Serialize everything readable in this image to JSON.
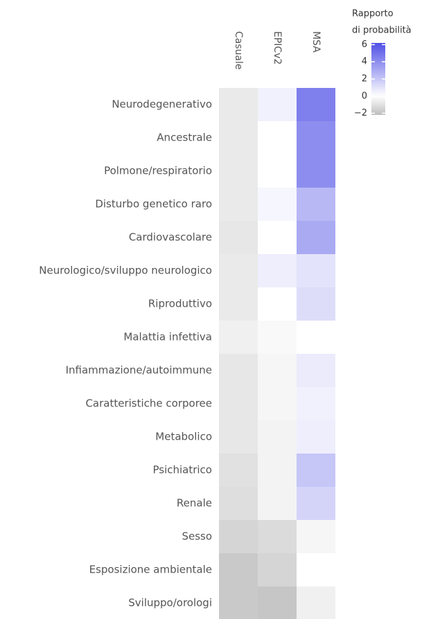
{
  "chart_data": {
    "type": "heatmap",
    "x_categories": [
      "Casuale",
      "EPICv2",
      "MSA"
    ],
    "y_categories": [
      "Neurodegenerativo",
      "Ancestrale",
      "Polmone/respiratorio",
      "Disturbo genetico raro",
      "Cardiovascolare",
      "Neurologico/sviluppo neurologico",
      "Riproduttivo",
      "Malattia infettiva",
      "Infiammazione/autoimmune",
      "Caratteristiche corporee",
      "Metabolico",
      "Psichiatrico",
      "Renale",
      "Sesso",
      "Esposizione ambientale",
      "Sviluppo/orologi"
    ],
    "values": [
      [
        -0.7,
        0.5,
        4.5
      ],
      [
        -0.7,
        0,
        4
      ],
      [
        -0.7,
        0,
        4
      ],
      [
        -0.7,
        0.3,
        2.5
      ],
      [
        -0.8,
        0,
        3
      ],
      [
        -0.7,
        0.6,
        1
      ],
      [
        -0.7,
        0,
        1.2
      ],
      [
        -0.5,
        -0.2,
        0
      ],
      [
        -0.8,
        -0.3,
        0.7
      ],
      [
        -0.8,
        -0.3,
        0.5
      ],
      [
        -0.8,
        -0.4,
        0.6
      ],
      [
        -1,
        -0.4,
        2
      ],
      [
        -1.1,
        -0.4,
        1.5
      ],
      [
        -1.4,
        -1.2,
        -0.3
      ],
      [
        -1.8,
        -1.4,
        0
      ],
      [
        -1.8,
        -1.9,
        -0.5
      ]
    ],
    "colorbar_title": [
      "Rapporto",
      "di probabilità"
    ],
    "zlim": [
      -2.2,
      6.2
    ],
    "zticks": [
      6,
      4,
      2,
      0,
      {
        "value": -2,
        "label": "−2"
      }
    ],
    "colors": {
      "low": "#bdbdbd",
      "mid": "#ffffff",
      "high": "#4f4fe6"
    }
  }
}
